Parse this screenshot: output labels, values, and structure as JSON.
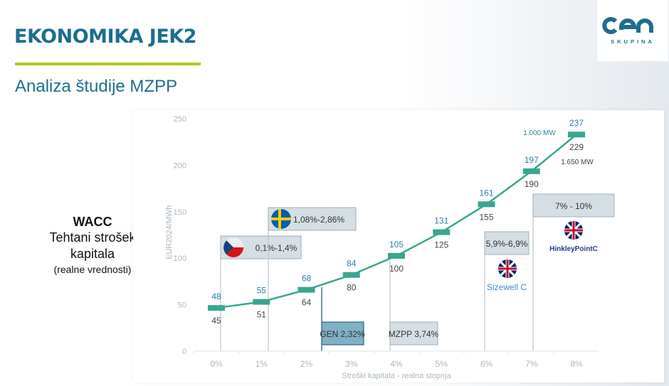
{
  "header": {
    "title": "EKONOMIKA JEK2",
    "subtitle": "Analiza študije MZPP"
  },
  "logo": {
    "text": "SKUPINA",
    "brand": "GEN"
  },
  "wacc": {
    "heading": "WACC",
    "line1": "Tehtani strošek",
    "line2": "kapitala",
    "note": "(realne vrednosti)"
  },
  "colors": {
    "line": "#3aa58f",
    "accent": "#1c6e8e",
    "gen_box": "#7fb0c6",
    "ann_box": "#d5dee4"
  },
  "chart_data": {
    "type": "line",
    "xlabel": "Stroški kapitala -  realna stopnja",
    "ylabel": "EUR2024/MWh",
    "ylim": [
      0,
      250
    ],
    "yticks": [
      "0",
      "50",
      "100",
      "150",
      "200",
      "250"
    ],
    "categories": [
      "0%",
      "1%",
      "2%",
      "3%",
      "4%",
      "5%",
      "6%",
      "7%",
      "8%"
    ],
    "upper": [
      48,
      55,
      68,
      84,
      105,
      131,
      161,
      197,
      237
    ],
    "lower": [
      45,
      51,
      64,
      80,
      100,
      125,
      155,
      190,
      229
    ],
    "capacity_labels": {
      "upper": "1.000 MW",
      "lower": "1.650 MW"
    },
    "annotations": [
      {
        "label": "0,1%-1,4%",
        "flag": "czech-flag-icon",
        "x": 0.1
      },
      {
        "label": "1,08%-2,86%",
        "flag": "sweden-flag-icon",
        "x": 1.08
      },
      {
        "label": "GEN 2,32%",
        "x": 2.32,
        "highlight": true
      },
      {
        "label": "MZPP 3,74%",
        "x": 3.74
      },
      {
        "label": "5,9%-6,9%",
        "flag": "uk-flag-icon",
        "project": "Sizewell C",
        "x": 5.9
      },
      {
        "label": "7% - 10%",
        "flag": "uk-flag-icon",
        "project": "HinkleyPointC",
        "x": 7
      }
    ]
  }
}
